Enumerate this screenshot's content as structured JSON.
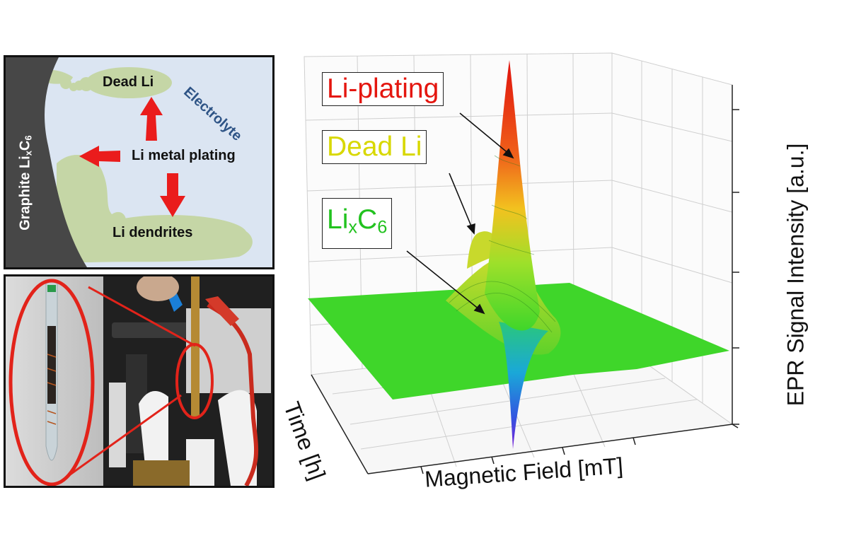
{
  "schematic": {
    "graphite_label": "Graphite Li",
    "graphite_sub_x": "x",
    "graphite_c": "C",
    "graphite_sub_6": "6",
    "electrolyte": "Electrolyte",
    "dead_li": "Dead Li",
    "plating": "Li metal plating",
    "dendrites": "Li dendrites"
  },
  "plot": {
    "callouts": {
      "li_plating": "Li-plating",
      "dead_li": "Dead Li",
      "lixc6_li": "Li",
      "lixc6_x": "x",
      "lixc6_c": "C",
      "lixc6_6": "6"
    },
    "axes": {
      "x": "Magnetic Field [mT]",
      "y": "Time [h]",
      "z": "EPR Signal Intensity [a.u.]"
    },
    "colors": {
      "li_plating": "#e4160f",
      "dead_li": "#d8d800",
      "lixc6": "#22c21f",
      "baseline": "#3fd62a"
    }
  }
}
